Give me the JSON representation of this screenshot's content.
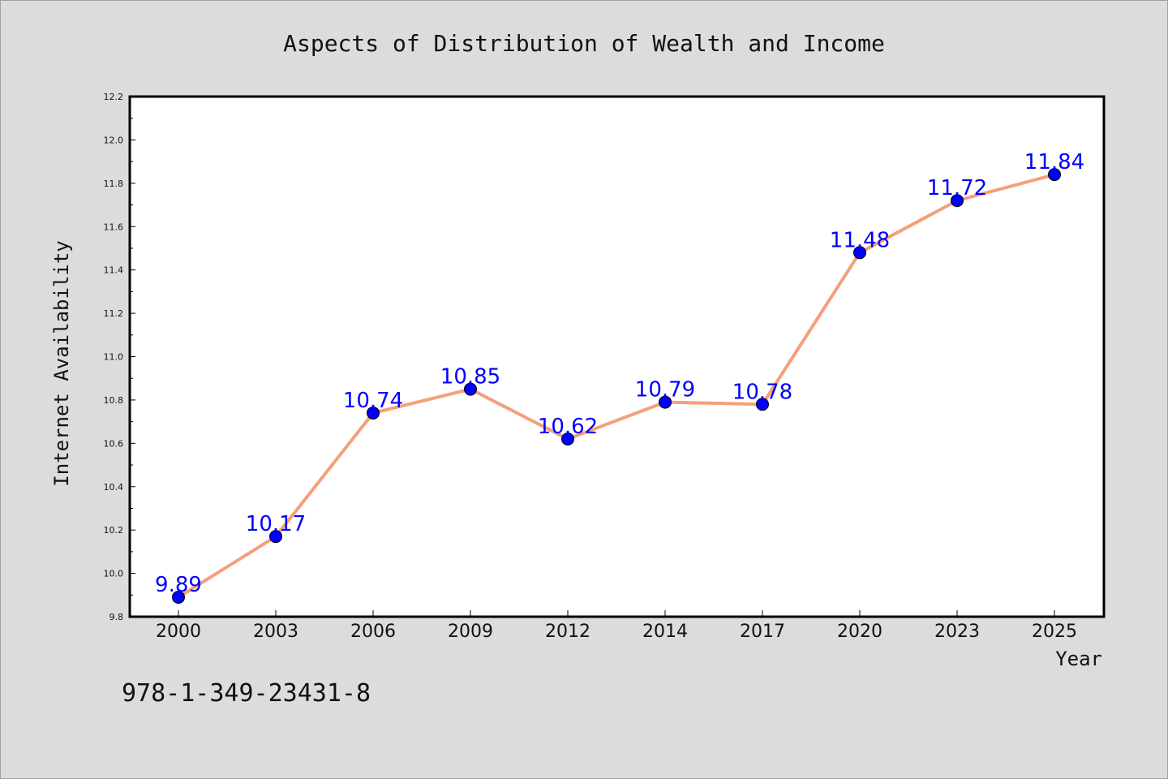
{
  "chart_data": {
    "type": "line",
    "title": "Aspects of Distribution of Wealth and Income",
    "xlabel": "Year",
    "ylabel": "Internet Availability",
    "categories": [
      "2000",
      "2003",
      "2006",
      "2009",
      "2012",
      "2014",
      "2017",
      "2020",
      "2023",
      "2025"
    ],
    "series": [
      {
        "values": [
          9.89,
          10.17,
          10.74,
          10.85,
          10.62,
          10.79,
          10.78,
          11.48,
          11.72,
          11.84
        ],
        "labels": [
          "9.89",
          "10.17",
          "10.74",
          "10.85",
          "10.62",
          "10.79",
          "10.78",
          "11.48",
          "11.72",
          "11.84"
        ],
        "line_color": "#f4a07a",
        "marker_color": "#0000ff"
      }
    ],
    "ylim": [
      9.8,
      12.2
    ],
    "yticks": [
      "9.8",
      "10.0",
      "10.2",
      "10.4",
      "10.6",
      "10.8",
      "11.0",
      "11.2",
      "11.4",
      "11.6",
      "11.8",
      "12.0",
      "12.2"
    ],
    "grid": false,
    "legend": "none",
    "label_color": "#0000ff"
  },
  "footnote": "978-1-349-23431-8"
}
